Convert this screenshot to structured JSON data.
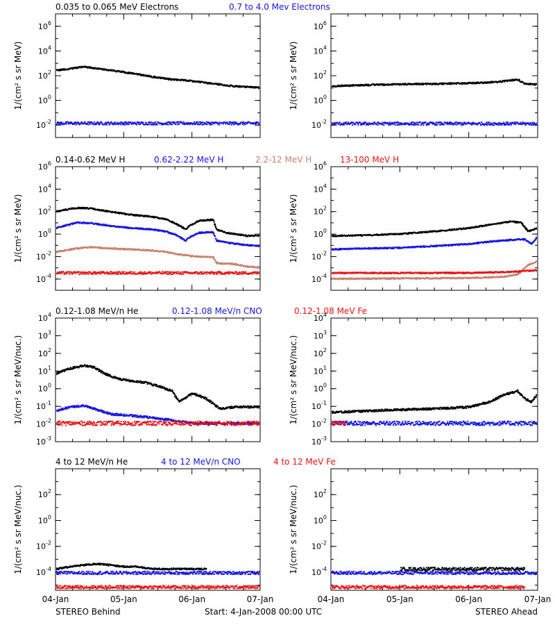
{
  "footer": {
    "left": "STEREO Behind",
    "center": "Start:  4-Jan-2008 00:00 UTC",
    "right": "STEREO Ahead"
  },
  "x_tick_labels": [
    "04-Jan",
    "05-Jan",
    "06-Jan",
    "07-Jan"
  ],
  "colors": {
    "black": "#000000",
    "blue": "#1414e6",
    "tan": "#c8826e",
    "red": "#e61414"
  },
  "chart_data": [
    {
      "type": "scatter",
      "panel": "electrons-behind",
      "yscale": "log",
      "ylabel": "1/(cm² s sr MeV)",
      "ylim": [
        0.001,
        10000000
      ],
      "yticks": [
        "10-2",
        "100",
        "102",
        "104",
        "106"
      ],
      "x_unit": "days since 04-Jan-2008 00:00 UTC",
      "xlim": [
        0,
        3
      ],
      "legend": [
        {
          "label": "0.035 to 0.065 MeV Electrons",
          "color": "black"
        },
        {
          "label": "0.7 to 4.0 Mev Electrons",
          "color": "blue"
        }
      ],
      "series": [
        {
          "name": "0.035 to 0.065 MeV Electrons",
          "color": "black",
          "x": [
            0,
            0.25,
            0.4,
            0.6,
            0.85,
            1.1,
            1.4,
            1.7,
            1.85,
            2.1,
            2.4,
            2.6,
            3.0
          ],
          "y": [
            300,
            450,
            600,
            420,
            280,
            180,
            95,
            55,
            50,
            36,
            22,
            16,
            12
          ]
        },
        {
          "name": "0.7 to 4.0 Mev Electrons",
          "color": "blue",
          "x": [
            0,
            1,
            2,
            3
          ],
          "y": [
            0.016,
            0.016,
            0.016,
            0.016
          ]
        }
      ]
    },
    {
      "type": "scatter",
      "panel": "electrons-ahead",
      "yscale": "log",
      "ylabel": "1/(cm² s sr MeV)",
      "ylim": [
        0.001,
        10000000
      ],
      "yticks": [
        "10-2",
        "100",
        "102",
        "104",
        "106"
      ],
      "x_unit": "days since 04-Jan-2008 00:00 UTC",
      "xlim": [
        0,
        3
      ],
      "series": [
        {
          "name": "0.035 to 0.065 MeV Electrons",
          "color": "black",
          "x": [
            0,
            0.5,
            1.0,
            1.5,
            2.0,
            2.4,
            2.7,
            2.8,
            3.0
          ],
          "y": [
            16,
            20,
            23,
            25,
            28,
            35,
            55,
            25,
            22
          ]
        },
        {
          "name": "0.7 to 4.0 Mev Electrons",
          "color": "blue",
          "x": [
            0,
            1,
            2,
            3
          ],
          "y": [
            0.015,
            0.015,
            0.015,
            0.015
          ]
        }
      ]
    },
    {
      "type": "scatter",
      "panel": "protons-behind",
      "yscale": "log",
      "ylabel": "1/(cm² s sr MeV)",
      "ylim": [
        1e-05,
        1000000
      ],
      "yticks": [
        "10-4",
        "10-2",
        "100",
        "102",
        "104",
        "106"
      ],
      "x_unit": "days since 04-Jan-2008 00:00 UTC",
      "xlim": [
        0,
        3
      ],
      "legend": [
        {
          "label": "0.14-0.62 MeV H",
          "color": "black"
        },
        {
          "label": "0.62-2.22 MeV H",
          "color": "blue"
        },
        {
          "label": "2.2-12 MeV H",
          "color": "tan"
        },
        {
          "label": "13-100 MeV H",
          "color": "red"
        }
      ],
      "series": [
        {
          "name": "0.14-0.62 MeV H",
          "color": "black",
          "x": [
            0,
            0.3,
            0.5,
            0.8,
            1.1,
            1.4,
            1.6,
            1.75,
            1.9,
            1.95,
            2.1,
            2.3,
            2.35,
            2.5,
            2.8,
            3.0
          ],
          "y": [
            120,
            250,
            220,
            110,
            60,
            40,
            25,
            10,
            3,
            6,
            18,
            22,
            3,
            1.5,
            0.8,
            0.8
          ]
        },
        {
          "name": "0.62-2.22 MeV H",
          "color": "blue",
          "x": [
            0,
            0.3,
            0.5,
            0.8,
            1.1,
            1.4,
            1.6,
            1.75,
            1.9,
            1.95,
            2.1,
            2.3,
            2.35,
            2.5,
            2.8,
            3.0
          ],
          "y": [
            4,
            12,
            11,
            6,
            4,
            3,
            2,
            1,
            0.3,
            0.6,
            1.5,
            1.7,
            0.3,
            0.2,
            0.12,
            0.1
          ]
        },
        {
          "name": "2.2-12 MeV H",
          "color": "tan",
          "x": [
            0,
            0.3,
            0.5,
            0.8,
            1.1,
            1.4,
            1.6,
            1.75,
            2.0,
            2.3,
            2.35,
            2.6,
            2.8,
            3.0
          ],
          "y": [
            0.03,
            0.06,
            0.08,
            0.06,
            0.05,
            0.04,
            0.03,
            0.02,
            0.012,
            0.01,
            0.003,
            0.0025,
            0.0015,
            0.0012
          ]
        },
        {
          "name": "13-100 MeV H",
          "color": "red",
          "x": [
            0,
            1,
            2,
            3
          ],
          "y": [
            0.0004,
            0.0004,
            0.0004,
            0.0004
          ]
        }
      ]
    },
    {
      "type": "scatter",
      "panel": "protons-ahead",
      "yscale": "log",
      "ylabel": "1/(cm² s sr MeV)",
      "ylim": [
        1e-05,
        1000000
      ],
      "yticks": [
        "10-4",
        "10-2",
        "100",
        "102",
        "104",
        "106"
      ],
      "x_unit": "days since 04-Jan-2008 00:00 UTC",
      "xlim": [
        0,
        3
      ],
      "series": [
        {
          "name": "0.14-0.62 MeV H",
          "color": "black",
          "x": [
            0,
            0.5,
            1.0,
            1.5,
            2.0,
            2.3,
            2.6,
            2.75,
            2.85,
            3.0
          ],
          "y": [
            0.8,
            0.9,
            1.2,
            2.0,
            4.0,
            8.0,
            15,
            12,
            2,
            4
          ]
        },
        {
          "name": "0.62-2.22 MeV H",
          "color": "blue",
          "x": [
            0,
            0.5,
            1.0,
            1.5,
            2.0,
            2.3,
            2.6,
            2.8,
            2.9,
            3.0
          ],
          "y": [
            0.05,
            0.06,
            0.07,
            0.1,
            0.15,
            0.25,
            0.35,
            0.4,
            0.15,
            0.8
          ]
        },
        {
          "name": "2.2-12 MeV H",
          "color": "tan",
          "x": [
            0,
            1,
            2,
            2.5,
            2.7,
            2.85,
            3.0
          ],
          "y": [
            0.00012,
            0.00013,
            0.00014,
            0.00018,
            0.0003,
            0.002,
            0.005
          ]
        },
        {
          "name": "13-100 MeV H",
          "color": "red",
          "x": [
            0,
            1,
            2,
            2.6,
            2.8,
            3.0
          ],
          "y": [
            0.0004,
            0.0004,
            0.0004,
            0.0005,
            0.0006,
            0.0007
          ]
        }
      ]
    },
    {
      "type": "scatter",
      "panel": "ions-low-behind",
      "yscale": "log",
      "ylabel": "1/(cm² s sr MeV/nuc.)",
      "ylim": [
        0.001,
        10000
      ],
      "yticks": [
        "10-3",
        "10-2",
        "10-1",
        "100",
        "101",
        "102",
        "103",
        "104"
      ],
      "x_unit": "days since 04-Jan-2008 00:00 UTC",
      "xlim": [
        0,
        3
      ],
      "legend": [
        {
          "label": "0.12-1.08 MeV/n He",
          "color": "black"
        },
        {
          "label": "0.12-1.08 MeV/n CNO",
          "color": "blue"
        },
        {
          "label": "0.12-1.08 MeV Fe",
          "color": "red"
        }
      ],
      "series": [
        {
          "name": "0.12-1.08 MeV/n He",
          "color": "black",
          "x": [
            0,
            0.2,
            0.4,
            0.55,
            0.7,
            0.9,
            1.1,
            1.3,
            1.5,
            1.7,
            1.8,
            2.0,
            2.2,
            2.4,
            2.6,
            2.8,
            3.0
          ],
          "y": [
            8,
            15,
            22,
            18,
            8,
            4,
            3,
            2.5,
            1.5,
            0.8,
            0.2,
            0.6,
            0.3,
            0.08,
            0.1,
            0.1,
            0.1
          ]
        },
        {
          "name": "0.12-1.08 MeV/n CNO",
          "color": "blue",
          "x": [
            0,
            0.2,
            0.4,
            0.6,
            0.8,
            1.2,
            1.6,
            2.0,
            3.0
          ],
          "y": [
            0.06,
            0.1,
            0.12,
            0.07,
            0.04,
            0.03,
            0.02,
            0.012,
            0.012
          ]
        },
        {
          "name": "0.12-1.08 MeV Fe",
          "color": "red",
          "x": [
            0,
            1,
            2,
            3
          ],
          "y": [
            0.012,
            0.012,
            0.012,
            0.012
          ]
        }
      ]
    },
    {
      "type": "scatter",
      "panel": "ions-low-ahead",
      "yscale": "log",
      "ylabel": "1/(cm² s sr MeV/nuc.)",
      "ylim": [
        0.001,
        10000
      ],
      "yticks": [
        "10-3",
        "10-2",
        "10-1",
        "100",
        "101",
        "102",
        "103",
        "104"
      ],
      "x_unit": "days since 04-Jan-2008 00:00 UTC",
      "xlim": [
        0,
        3
      ],
      "series": [
        {
          "name": "0.12-1.08 MeV/n He",
          "color": "black",
          "x": [
            0,
            0.5,
            1.0,
            1.5,
            2.0,
            2.3,
            2.5,
            2.7,
            2.8,
            2.9,
            3.0
          ],
          "y": [
            0.05,
            0.06,
            0.07,
            0.08,
            0.1,
            0.2,
            0.5,
            0.8,
            0.3,
            0.2,
            0.6
          ]
        },
        {
          "name": "0.12-1.08 MeV/n CNO",
          "color": "blue",
          "x": [
            0,
            1,
            2,
            3
          ],
          "y": [
            0.012,
            0.012,
            0.012,
            0.012
          ]
        },
        {
          "name": "0.12-1.08 MeV Fe",
          "color": "red",
          "x": [
            0,
            0.1,
            0.2
          ],
          "y": [
            0.012,
            0.012,
            0.012
          ]
        }
      ]
    },
    {
      "type": "scatter",
      "panel": "ions-high-behind",
      "yscale": "log",
      "ylabel": "1/(cm² s sr MeV/nuc.)",
      "ylim": [
        4e-06,
        10000
      ],
      "yticks": [
        "10-4",
        "10-2",
        "100",
        "102"
      ],
      "x_unit": "days since 04-Jan-2008 00:00 UTC",
      "xlim": [
        0,
        3
      ],
      "legend": [
        {
          "label": "4 to 12 MeV/n He",
          "color": "black"
        },
        {
          "label": "4 to 12 MeV/n CNO",
          "color": "blue"
        },
        {
          "label": "4 to 12 MeV Fe",
          "color": "red"
        }
      ],
      "series": [
        {
          "name": "4 to 12 MeV/n He",
          "color": "black",
          "x": [
            0,
            0.2,
            0.4,
            0.6,
            0.8,
            1.0,
            1.2,
            1.4,
            1.6,
            1.8,
            2.0,
            2.2
          ],
          "y": [
            0.0002,
            0.0003,
            0.0004,
            0.0005,
            0.0004,
            0.0003,
            0.0003,
            0.0002,
            0.0002,
            0.0002,
            0.0002,
            0.0002
          ]
        },
        {
          "name": "4 to 12 MeV/n CNO",
          "color": "blue",
          "x": [
            0,
            1,
            2,
            3
          ],
          "y": [
            0.0001,
            0.0001,
            0.0001,
            0.0001
          ]
        },
        {
          "name": "4 to 12 MeV Fe",
          "color": "red",
          "x": [
            0,
            1,
            2,
            3
          ],
          "y": [
            8e-06,
            8e-06,
            8e-06,
            8e-06
          ]
        }
      ]
    },
    {
      "type": "scatter",
      "panel": "ions-high-ahead",
      "yscale": "log",
      "ylabel": "1/(cm² s sr MeV/nuc.)",
      "ylim": [
        4e-06,
        10000
      ],
      "yticks": [
        "10-4",
        "10-2",
        "100",
        "102"
      ],
      "x_unit": "days since 04-Jan-2008 00:00 UTC",
      "xlim": [
        0,
        3
      ],
      "series": [
        {
          "name": "4 to 12 MeV/n He",
          "color": "black",
          "x": [
            1.0,
            1.6,
            2.0,
            2.5,
            2.8
          ],
          "y": [
            0.0002,
            0.0002,
            0.0002,
            0.0002,
            0.0002
          ]
        },
        {
          "name": "4 to 12 MeV/n CNO",
          "color": "blue",
          "x": [
            0,
            1,
            2,
            3
          ],
          "y": [
            0.0001,
            0.0001,
            0.0001,
            0.0001
          ]
        },
        {
          "name": "4 to 12 MeV Fe",
          "color": "red",
          "x": [
            0,
            2.8
          ],
          "y": [
            8e-06,
            8e-06
          ]
        }
      ]
    }
  ]
}
